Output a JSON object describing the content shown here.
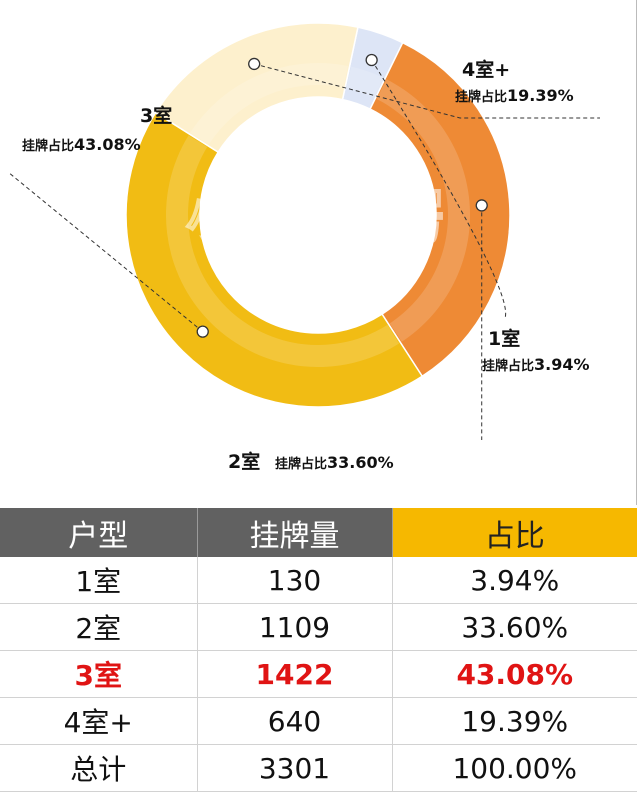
{
  "chart_data": {
    "type": "pie",
    "slices": [
      {
        "name": "1室",
        "label": "挂牌占比",
        "value": 3.94,
        "value_text": "3.94%",
        "color": "#dde5f6"
      },
      {
        "name": "2室",
        "label": "挂牌占比",
        "value": 33.6,
        "value_text": "33.60%",
        "color": "#ee8a35"
      },
      {
        "name": "3室",
        "label": "挂牌占比",
        "value": 43.08,
        "value_text": "43.08%",
        "color": "#f1bc14"
      },
      {
        "name": "4室+",
        "label": "挂牌占比",
        "value": 19.39,
        "value_text": "19.39%",
        "color": "#fdf0cd"
      }
    ],
    "watermark": "小胖看房"
  },
  "table": {
    "headers": [
      "户型",
      "挂牌量",
      "占比"
    ],
    "header_colors": {
      "default": "#616161",
      "highlight": "#f6b800"
    },
    "rows": [
      {
        "type": "1室",
        "count": "130",
        "share": "3.94%",
        "highlight": false
      },
      {
        "type": "2室",
        "count": "1109",
        "share": "33.60%",
        "highlight": false
      },
      {
        "type": "3室",
        "count": "1422",
        "share": "43.08%",
        "highlight": true
      },
      {
        "type": "4室+",
        "count": "640",
        "share": "19.39%",
        "highlight": false
      },
      {
        "type": "总计",
        "count": "3301",
        "share": "100.00%",
        "highlight": false
      }
    ],
    "highlight_color": "#e01414"
  }
}
